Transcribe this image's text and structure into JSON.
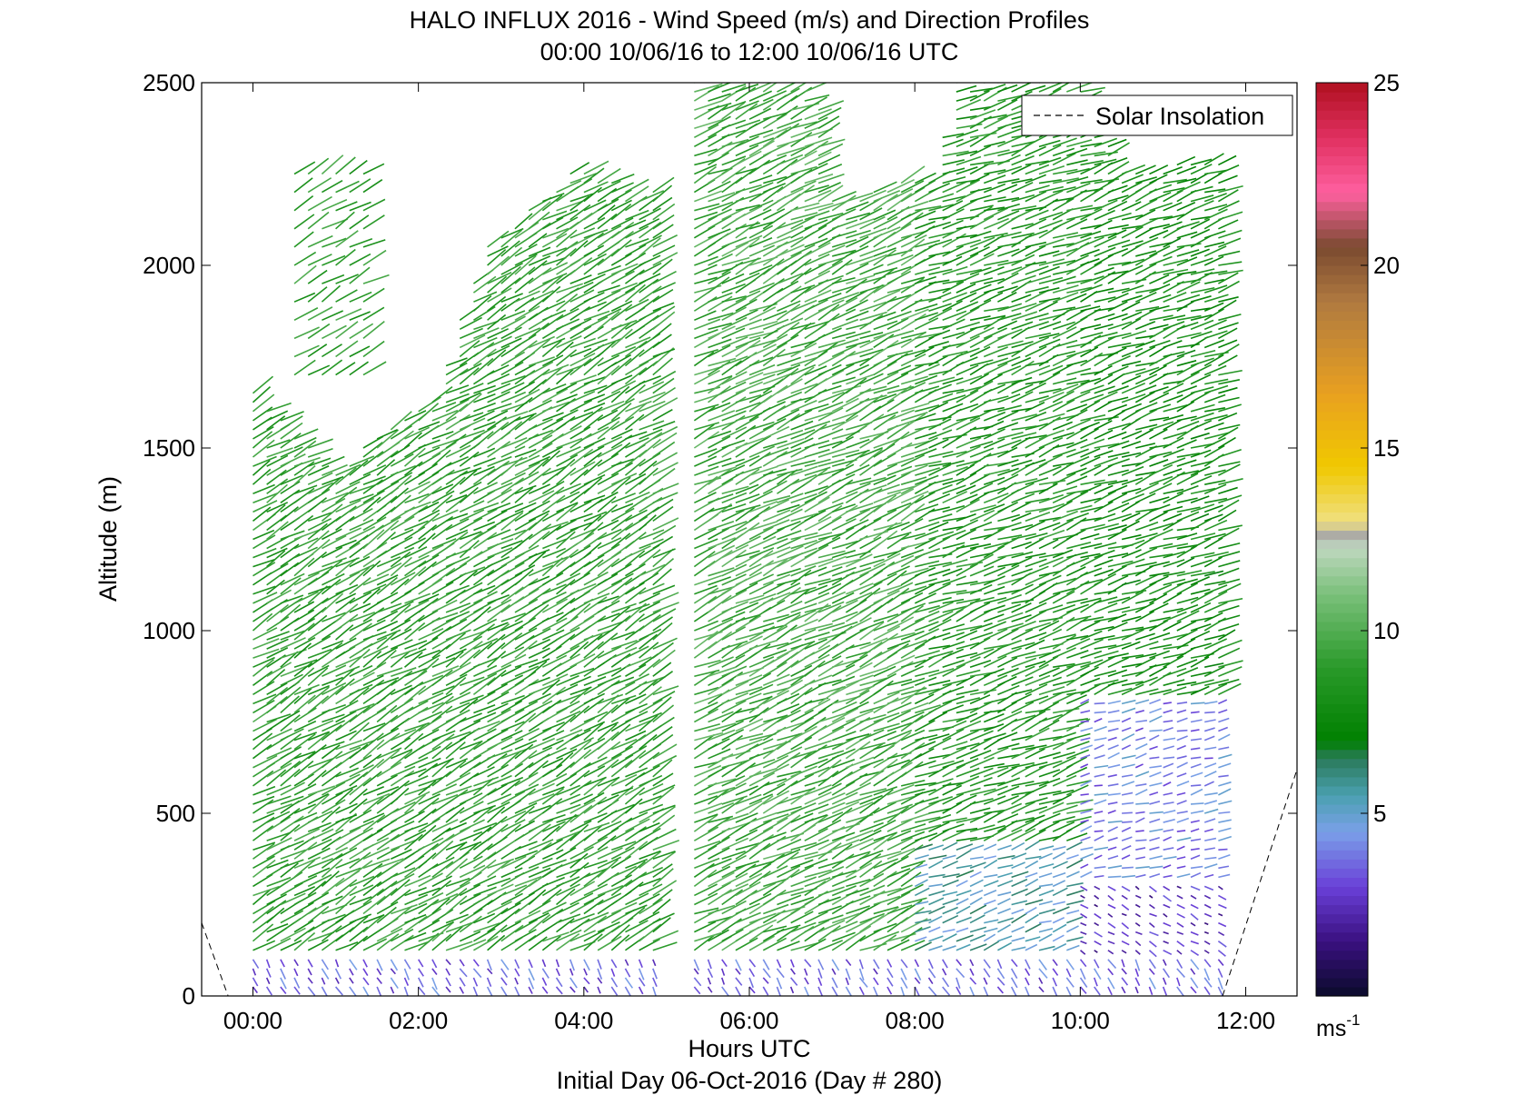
{
  "chart_data": {
    "type": "quiver",
    "title": "HALO INFLUX 2016 - Wind Speed (m/s) and Direction Profiles",
    "subtitle": "00:00 10/06/16 to 12:00 10/06/16  UTC",
    "xlabel": "Hours UTC",
    "ylabel": "Altitude (m)",
    "footer": "Initial Day 06-Oct-2016 (Day # 280)",
    "xlim": [
      -0.62,
      12.62
    ],
    "ylim": [
      0,
      2500
    ],
    "x_ticks": [
      0,
      2,
      4,
      6,
      8,
      10,
      12
    ],
    "x_tick_labels": [
      "00:00",
      "02:00",
      "04:00",
      "06:00",
      "08:00",
      "10:00",
      "12:00"
    ],
    "y_ticks": [
      0,
      500,
      1000,
      1500,
      2000,
      2500
    ],
    "y_tick_labels": [
      "0",
      "500",
      "1000",
      "1500",
      "2000",
      "2500"
    ],
    "legend": {
      "entries": [
        "Solar Insolation"
      ],
      "placement": "top-right"
    },
    "colorbar": {
      "range": [
        0,
        25
      ],
      "ticks": [
        5,
        10,
        15,
        20,
        25
      ],
      "tick_labels": [
        "5",
        "10",
        "15",
        "20",
        "25"
      ],
      "unit_label": "ms",
      "unit_exponent": "-1",
      "colormap": [
        [
          0,
          "#0a0a2a"
        ],
        [
          1.5,
          "#3a1080"
        ],
        [
          3,
          "#6a40d8"
        ],
        [
          4.5,
          "#7aa0e8"
        ],
        [
          5.5,
          "#4aa0b0"
        ],
        [
          6.5,
          "#2a7a5a"
        ],
        [
          7,
          "#008000"
        ],
        [
          9,
          "#2a9a2a"
        ],
        [
          11,
          "#7ac07a"
        ],
        [
          12.3,
          "#c0d8c0"
        ],
        [
          12.6,
          "#a8a8a8"
        ],
        [
          13,
          "#f0e080"
        ],
        [
          14.5,
          "#f0c800"
        ],
        [
          16.5,
          "#e8a020"
        ],
        [
          19,
          "#b07a40"
        ],
        [
          20.5,
          "#7a4a30"
        ],
        [
          22,
          "#ff60a0"
        ],
        [
          23.5,
          "#e03060"
        ],
        [
          25,
          "#b01020"
        ]
      ]
    },
    "solar_insolation": [
      {
        "x": -0.62,
        "y": 200
      },
      {
        "x": -0.3,
        "y": 0
      },
      {
        "x": 11.72,
        "y": 0
      },
      {
        "x": 12.62,
        "y": 620
      }
    ],
    "profiles": {
      "start_hour": 0.0,
      "end_hour": 11.75,
      "interval_hours": 0.1667,
      "gap_hours": [
        [
          4.9,
          5.2
        ]
      ],
      "altitude_step_m": 25,
      "max_altitude_m": [
        [
          0,
          1650
        ],
        [
          0.5,
          1540
        ],
        [
          1.0,
          1430
        ],
        [
          1.6,
          1560
        ],
        [
          2.2,
          1650
        ],
        [
          2.8,
          2050
        ],
        [
          3.3,
          2150
        ],
        [
          3.9,
          2270
        ],
        [
          4.8,
          2180
        ],
        [
          5.2,
          2500
        ],
        [
          6.8,
          2500
        ],
        [
          7.0,
          2180
        ],
        [
          8.2,
          2250
        ],
        [
          8.5,
          2500
        ],
        [
          10.0,
          2500
        ],
        [
          10.5,
          2250
        ],
        [
          11.75,
          2300
        ]
      ],
      "sparse_upper_columns": [
        {
          "hours": [
            0.5,
            1.4
          ],
          "from_m": 1700,
          "to_m": 2270
        }
      ],
      "speed_field": [
        {
          "hours": [
            0,
            5
          ],
          "alt_m": [
            100,
            2500
          ],
          "speed": 9.0,
          "direction_deg": 240
        },
        {
          "hours": [
            5,
            8
          ],
          "alt_m": [
            100,
            2500
          ],
          "speed": 9.5,
          "direction_deg": 245
        },
        {
          "hours": [
            8,
            10
          ],
          "alt_m": [
            400,
            2500
          ],
          "speed": 8.5,
          "direction_deg": 250
        },
        {
          "hours": [
            8,
            10
          ],
          "alt_m": [
            100,
            400
          ],
          "speed": 5.5,
          "direction_deg": 250
        },
        {
          "hours": [
            10,
            11.75
          ],
          "alt_m": [
            800,
            2500
          ],
          "speed": 8.0,
          "direction_deg": 250
        },
        {
          "hours": [
            10,
            11.75
          ],
          "alt_m": [
            300,
            800
          ],
          "speed": 4.0,
          "direction_deg": 255
        },
        {
          "hours": [
            10,
            11.75
          ],
          "alt_m": [
            0,
            300
          ],
          "speed": 2.5,
          "direction_deg": 300
        },
        {
          "hours": [
            0,
            11.75
          ],
          "alt_m": [
            0,
            100
          ],
          "speed": 3.5,
          "direction_deg": 330
        }
      ]
    }
  }
}
